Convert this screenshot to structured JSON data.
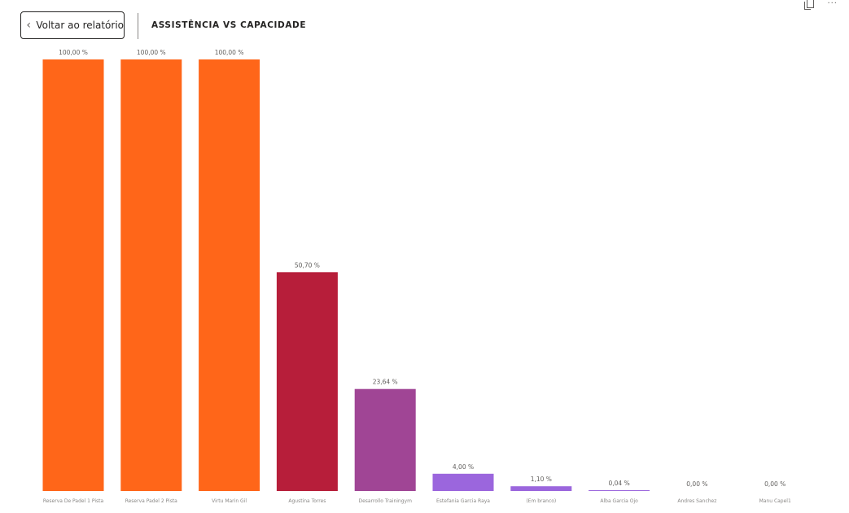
{
  "header": {
    "back_label": "Voltar ao relatório",
    "title": "ASSISTÊNCIA VS CAPACIDADE"
  },
  "icons": {
    "copy": "copy-icon",
    "more": "more-options-icon"
  },
  "chart_data": {
    "type": "bar",
    "title": "",
    "xlabel": "",
    "ylabel": "",
    "ylim": [
      0,
      100
    ],
    "grid": false,
    "categories": [
      "Reserva De Padel 1 Pista",
      "Reserva Padel 2 Pista",
      "Virtu Marin Gil",
      "Agustina Torres",
      "Desarrollo Trainingym",
      "Estefania Garcia Raya",
      "(Em branco)",
      "Alba Garcia Ojo",
      "Andres Sanchez",
      "Manu Capel1"
    ],
    "values": [
      100,
      100,
      100,
      50.7,
      23.64,
      4.0,
      1.1,
      0.04,
      0.0,
      0.0
    ],
    "value_labels": [
      "100,00 %",
      "100,00 %",
      "100,00 %",
      "50,70 %",
      "23,64 %",
      "4,00 %",
      "1,10 %",
      "0,04 %",
      "0,00 %",
      "0,00 %"
    ],
    "colors": [
      "#FF6619",
      "#FF6619",
      "#FF6619",
      "#B71E3A",
      "#A04595",
      "#9B66DD",
      "#9B66DD",
      "#9B66DD",
      "#9B66DD",
      "#9B66DD"
    ]
  }
}
